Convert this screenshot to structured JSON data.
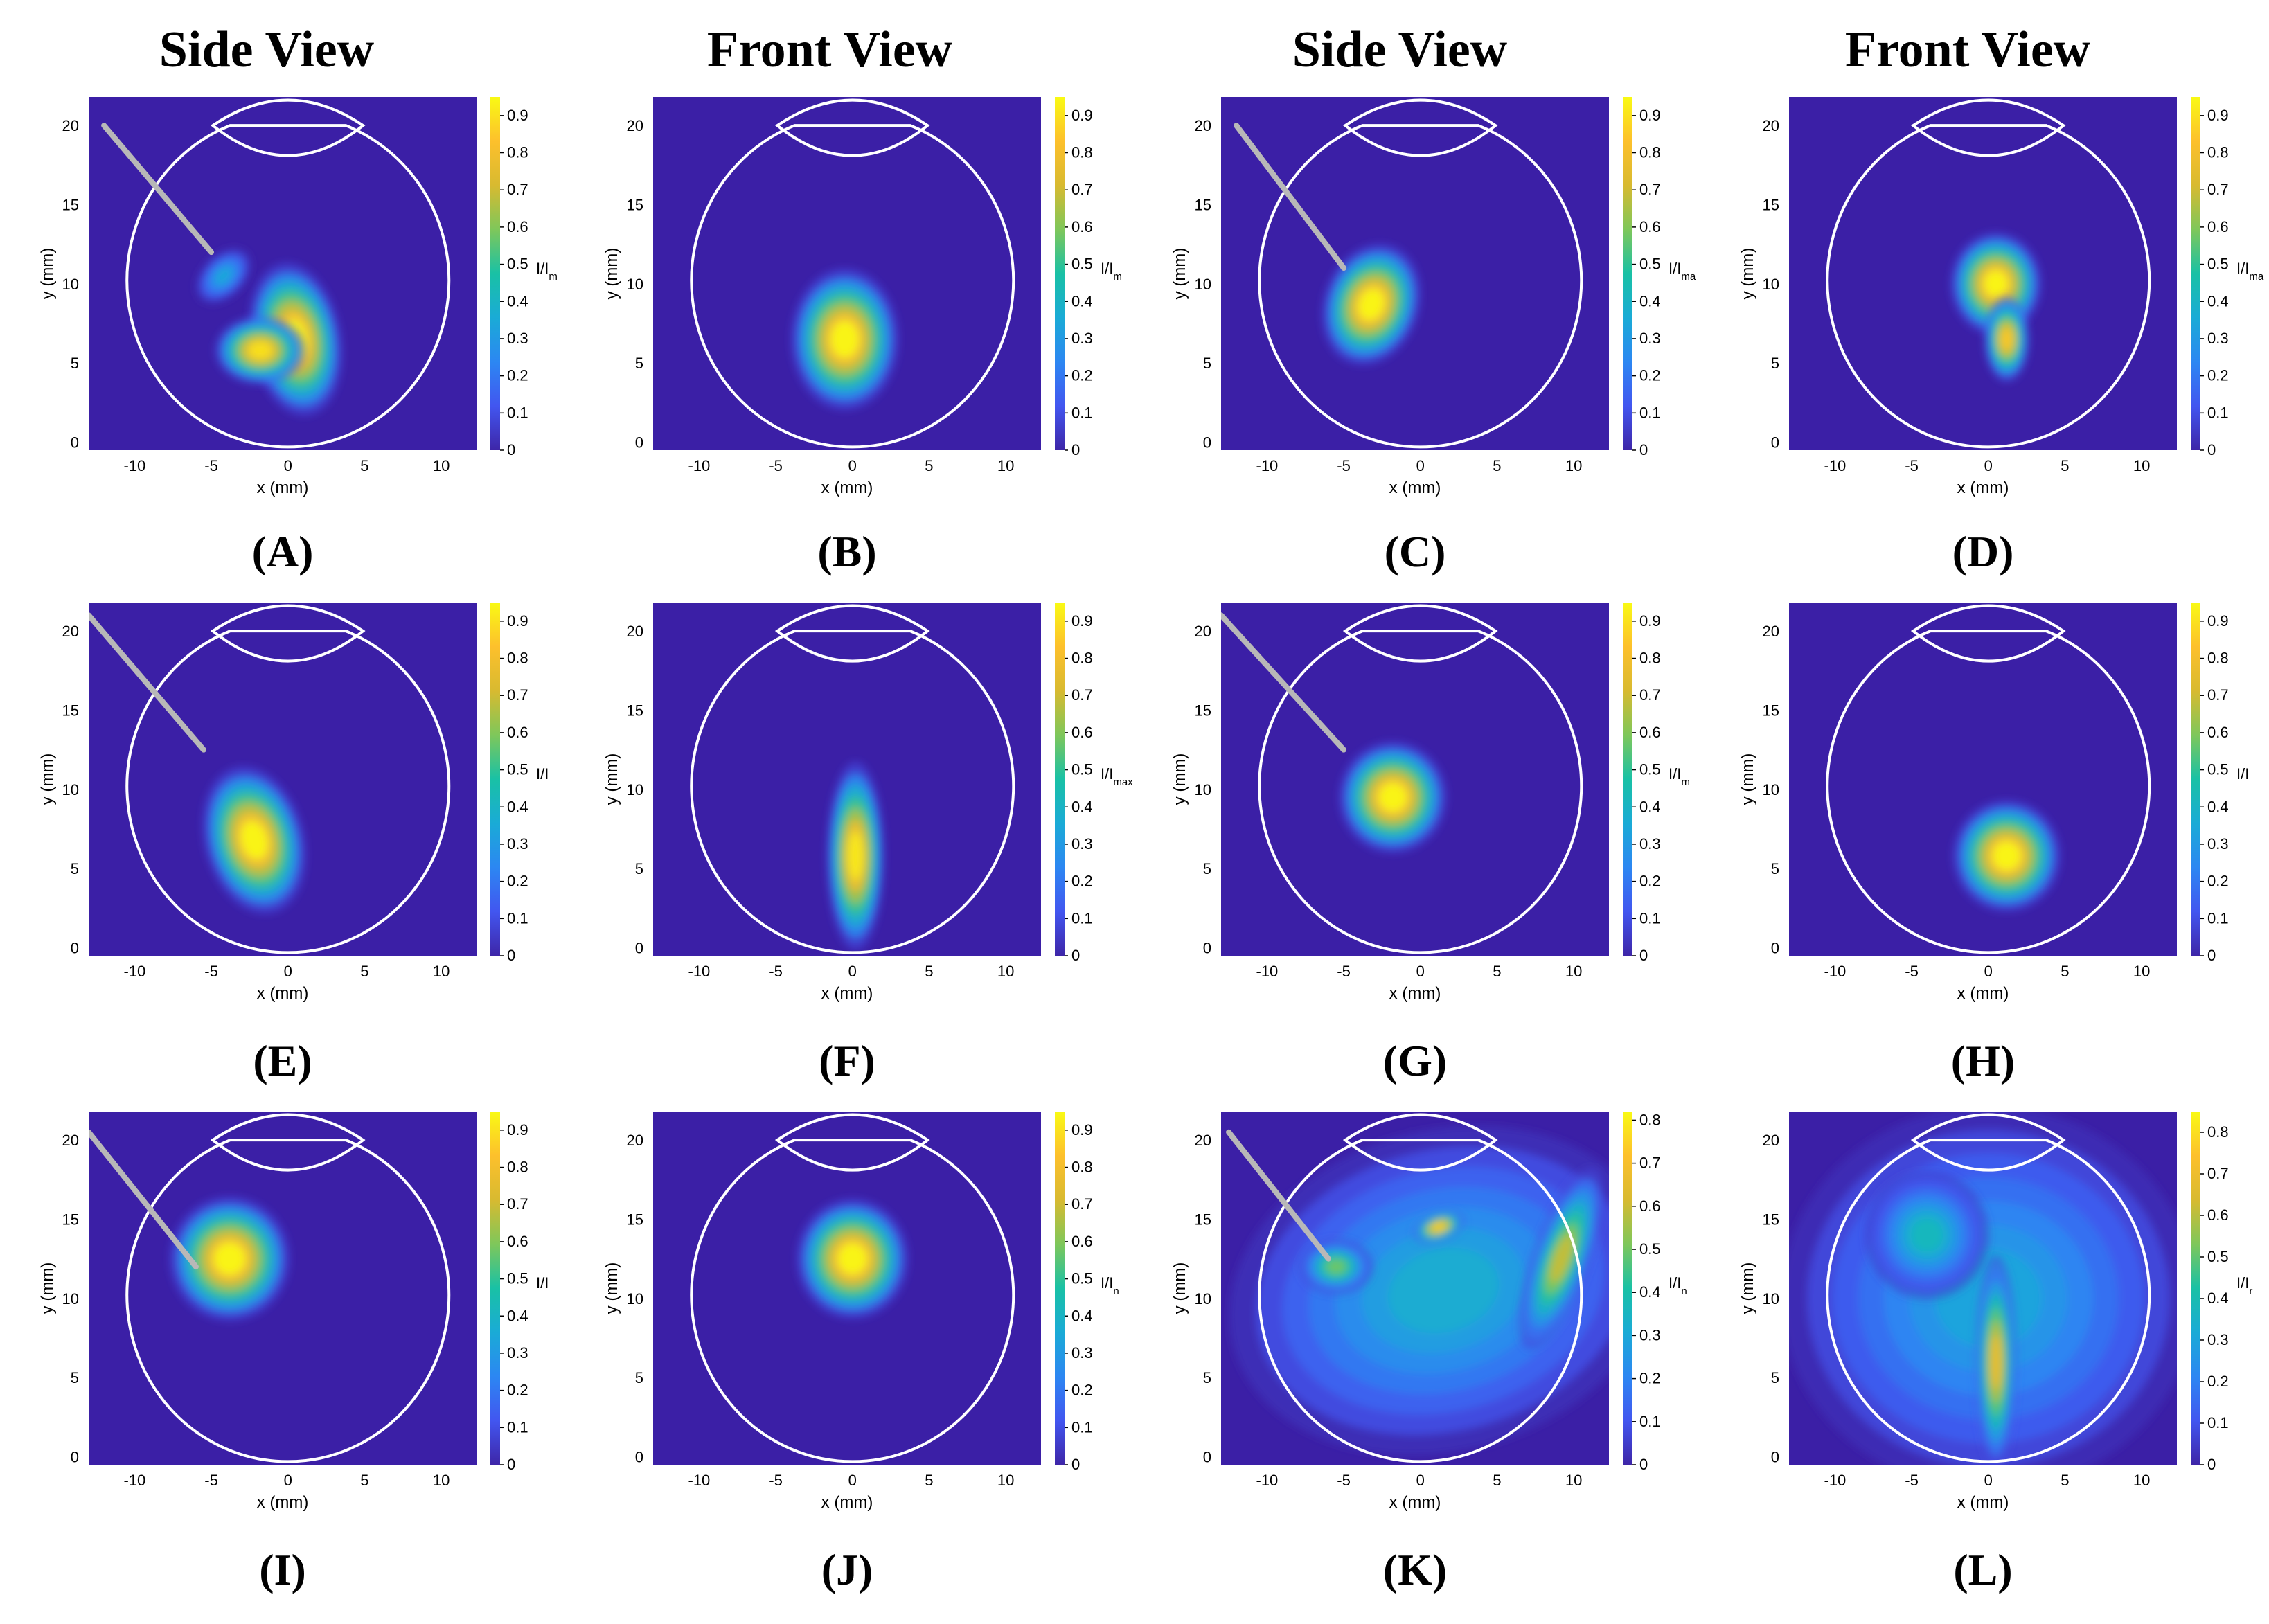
{
  "headers": [
    "Side View",
    "Front View",
    "Side View",
    "Front View"
  ],
  "colors": {
    "background": "#3B1FA6",
    "outline": "#FFFFFF",
    "needle": "#B8B8B8",
    "colormap": [
      "#3E26A8",
      "#4256F0",
      "#2C87F2",
      "#1AABD6",
      "#19C1A5",
      "#7FC75A",
      "#D8BA30",
      "#FDC02C",
      "#F9FA14"
    ]
  },
  "chart_data": [
    {
      "id": "A",
      "type": "heatmap",
      "view": "side",
      "caption": "(A)",
      "xlabel": "x (mm)",
      "ylabel": "y (mm)",
      "colorbar_label": "I/I_m",
      "clim": [
        0,
        0.95
      ],
      "xticks": [
        -10,
        -5,
        0,
        5,
        10
      ],
      "yticks": [
        0,
        5,
        10,
        15,
        20
      ],
      "colorbar_ticks": [
        0,
        0.1,
        0.2,
        0.3,
        0.4,
        0.5,
        0.6,
        0.7,
        0.8,
        0.9
      ],
      "needle": {
        "start": [
          -12,
          20
        ],
        "end": [
          -5,
          12
        ]
      },
      "blobs": [
        {
          "x": 0.5,
          "y": 6.5,
          "rx": 2.2,
          "ry": 3.6,
          "rot": -10,
          "peak": 0.95
        },
        {
          "x": -1.8,
          "y": 5.8,
          "rx": 2.2,
          "ry": 1.6,
          "rot": 0,
          "peak": 0.9
        },
        {
          "x": -4.2,
          "y": 10.5,
          "rx": 1.6,
          "ry": 1.0,
          "rot": -45,
          "peak": 0.35
        }
      ]
    },
    {
      "id": "B",
      "type": "heatmap",
      "view": "front",
      "caption": "(B)",
      "xlabel": "x (mm)",
      "ylabel": "y (mm)",
      "colorbar_label": "I/I_m",
      "clim": [
        0,
        0.95
      ],
      "xticks": [
        -10,
        -5,
        0,
        5,
        10
      ],
      "yticks": [
        0,
        5,
        10,
        15,
        20
      ],
      "colorbar_ticks": [
        0,
        0.1,
        0.2,
        0.3,
        0.4,
        0.5,
        0.6,
        0.7,
        0.8,
        0.9
      ],
      "needle": null,
      "blobs": [
        {
          "x": -0.5,
          "y": 6.5,
          "rx": 2.6,
          "ry": 3.3,
          "rot": 0,
          "peak": 0.95
        }
      ]
    },
    {
      "id": "C",
      "type": "heatmap",
      "view": "side",
      "caption": "(C)",
      "xlabel": "x (mm)",
      "ylabel": "y (mm)",
      "colorbar_label": "I/I_ma",
      "clim": [
        0,
        0.95
      ],
      "xticks": [
        -10,
        -5,
        0,
        5,
        10
      ],
      "yticks": [
        0,
        5,
        10,
        15,
        20
      ],
      "colorbar_ticks": [
        0,
        0.1,
        0.2,
        0.3,
        0.4,
        0.5,
        0.6,
        0.7,
        0.8,
        0.9
      ],
      "needle": {
        "start": [
          -12,
          20
        ],
        "end": [
          -5,
          11
        ]
      },
      "blobs": [
        {
          "x": -3.2,
          "y": 8.7,
          "rx": 2.3,
          "ry": 2.9,
          "rot": 20,
          "peak": 0.95
        }
      ]
    },
    {
      "id": "D",
      "type": "heatmap",
      "view": "front",
      "caption": "(D)",
      "xlabel": "x (mm)",
      "ylabel": "y (mm)",
      "colorbar_label": "I/I_ma",
      "clim": [
        0,
        0.95
      ],
      "xticks": [
        -10,
        -5,
        0,
        5,
        10
      ],
      "yticks": [
        0,
        5,
        10,
        15,
        20
      ],
      "colorbar_ticks": [
        0,
        0.1,
        0.2,
        0.3,
        0.4,
        0.5,
        0.6,
        0.7,
        0.8,
        0.9
      ],
      "needle": null,
      "blobs": [
        {
          "x": 0.5,
          "y": 10.0,
          "rx": 2.2,
          "ry": 2.4,
          "rot": 0,
          "peak": 0.95
        },
        {
          "x": 1.2,
          "y": 6.5,
          "rx": 1.1,
          "ry": 2.0,
          "rot": 0,
          "peak": 0.85
        }
      ]
    },
    {
      "id": "E",
      "type": "heatmap",
      "view": "side",
      "caption": "(E)",
      "xlabel": "x (mm)",
      "ylabel": "y (mm)",
      "colorbar_label": "I/I",
      "clim": [
        0,
        0.95
      ],
      "xticks": [
        -10,
        -5,
        0,
        5,
        10
      ],
      "yticks": [
        0,
        5,
        10,
        15,
        20
      ],
      "colorbar_ticks": [
        0,
        0.1,
        0.2,
        0.3,
        0.4,
        0.5,
        0.6,
        0.7,
        0.8,
        0.9
      ],
      "needle": {
        "start": [
          -13,
          21
        ],
        "end": [
          -5.5,
          12.5
        ]
      },
      "blobs": [
        {
          "x": -2.2,
          "y": 6.8,
          "rx": 2.4,
          "ry": 3.5,
          "rot": -15,
          "peak": 0.95
        }
      ]
    },
    {
      "id": "F",
      "type": "heatmap",
      "view": "front",
      "caption": "(F)",
      "xlabel": "x (mm)",
      "ylabel": "y (mm)",
      "colorbar_label": "I/I_max",
      "clim": [
        0,
        0.95
      ],
      "xticks": [
        -10,
        -5,
        0,
        5,
        10
      ],
      "yticks": [
        0,
        5,
        10,
        15,
        20
      ],
      "colorbar_ticks": [
        0,
        0.1,
        0.2,
        0.3,
        0.4,
        0.5,
        0.6,
        0.7,
        0.8,
        0.9
      ],
      "needle": null,
      "blobs": [
        {
          "x": 0.2,
          "y": 5.8,
          "rx": 1.4,
          "ry": 4.4,
          "rot": 0,
          "peak": 0.92
        }
      ]
    },
    {
      "id": "G",
      "type": "heatmap",
      "view": "side",
      "caption": "(G)",
      "xlabel": "x (mm)",
      "ylabel": "y (mm)",
      "colorbar_label": "I/I_m",
      "clim": [
        0,
        0.95
      ],
      "xticks": [
        -10,
        -5,
        0,
        5,
        10
      ],
      "yticks": [
        0,
        5,
        10,
        15,
        20
      ],
      "colorbar_ticks": [
        0,
        0.1,
        0.2,
        0.3,
        0.4,
        0.5,
        0.6,
        0.7,
        0.8,
        0.9
      ],
      "needle": {
        "start": [
          -13,
          21
        ],
        "end": [
          -5,
          12.5
        ]
      },
      "blobs": [
        {
          "x": -1.8,
          "y": 9.5,
          "rx": 2.6,
          "ry": 2.6,
          "rot": 0,
          "peak": 0.95
        }
      ]
    },
    {
      "id": "H",
      "type": "heatmap",
      "view": "front",
      "caption": "(H)",
      "xlabel": "x (mm)",
      "ylabel": "y (mm)",
      "colorbar_label": "I/I",
      "clim": [
        0,
        0.95
      ],
      "xticks": [
        -10,
        -5,
        0,
        5,
        10
      ],
      "yticks": [
        0,
        5,
        10,
        15,
        20
      ],
      "colorbar_ticks": [
        0,
        0.1,
        0.2,
        0.3,
        0.4,
        0.5,
        0.6,
        0.7,
        0.8,
        0.9
      ],
      "needle": null,
      "blobs": [
        {
          "x": 1.2,
          "y": 5.8,
          "rx": 2.6,
          "ry": 2.6,
          "rot": 0,
          "peak": 0.95
        }
      ]
    },
    {
      "id": "I",
      "type": "heatmap",
      "view": "side",
      "caption": "(I)",
      "xlabel": "x (mm)",
      "ylabel": "y (mm)",
      "colorbar_label": "I/I",
      "clim": [
        0,
        0.95
      ],
      "xticks": [
        -10,
        -5,
        0,
        5,
        10
      ],
      "yticks": [
        0,
        5,
        10,
        15,
        20
      ],
      "colorbar_ticks": [
        0,
        0.1,
        0.2,
        0.3,
        0.4,
        0.5,
        0.6,
        0.7,
        0.8,
        0.9
      ],
      "needle": {
        "start": [
          -13,
          20.5
        ],
        "end": [
          -6,
          12
        ]
      },
      "blobs": [
        {
          "x": -3.8,
          "y": 12.5,
          "rx": 2.9,
          "ry": 2.9,
          "rot": 0,
          "peak": 0.95
        }
      ]
    },
    {
      "id": "J",
      "type": "heatmap",
      "view": "front",
      "caption": "(J)",
      "xlabel": "x (mm)",
      "ylabel": "y (mm)",
      "colorbar_label": "I/I_n",
      "clim": [
        0,
        0.95
      ],
      "xticks": [
        -10,
        -5,
        0,
        5,
        10
      ],
      "yticks": [
        0,
        5,
        10,
        15,
        20
      ],
      "colorbar_ticks": [
        0,
        0.1,
        0.2,
        0.3,
        0.4,
        0.5,
        0.6,
        0.7,
        0.8,
        0.9
      ],
      "needle": null,
      "blobs": [
        {
          "x": 0.0,
          "y": 12.5,
          "rx": 2.7,
          "ry": 2.8,
          "rot": 0,
          "peak": 0.95
        }
      ]
    },
    {
      "id": "K",
      "type": "heatmap",
      "view": "side",
      "caption": "(K)",
      "xlabel": "x (mm)",
      "ylabel": "y (mm)",
      "colorbar_label": "I/I_n",
      "clim": [
        0,
        0.82
      ],
      "xticks": [
        -10,
        -5,
        0,
        5,
        10
      ],
      "yticks": [
        0,
        5,
        10,
        15,
        20
      ],
      "colorbar_ticks": [
        0,
        0.1,
        0.2,
        0.3,
        0.4,
        0.5,
        0.6,
        0.7,
        0.8
      ],
      "needle": {
        "start": [
          -12.5,
          20.5
        ],
        "end": [
          -6,
          12.5
        ]
      },
      "blobs": [
        {
          "x": 1.5,
          "y": 10.5,
          "rx": 10.5,
          "ry": 7.5,
          "rot": -15,
          "peak": 0.32
        },
        {
          "x": 1.2,
          "y": 14.5,
          "rx": 1.3,
          "ry": 0.7,
          "rot": -20,
          "peak": 0.75
        },
        {
          "x": 9.2,
          "y": 12.5,
          "rx": 1.4,
          "ry": 4.5,
          "rot": 20,
          "peak": 0.6
        },
        {
          "x": -5.5,
          "y": 12.0,
          "rx": 1.8,
          "ry": 1.3,
          "rot": 0,
          "peak": 0.5
        }
      ]
    },
    {
      "id": "L",
      "type": "heatmap",
      "view": "front",
      "caption": "(L)",
      "xlabel": "x (mm)",
      "ylabel": "y (mm)",
      "colorbar_label": "I/I_r",
      "clim": [
        0,
        0.85
      ],
      "xticks": [
        -10,
        -5,
        0,
        5,
        10
      ],
      "yticks": [
        0,
        5,
        10,
        15,
        20
      ],
      "colorbar_ticks": [
        0,
        0.1,
        0.2,
        0.3,
        0.4,
        0.5,
        0.6,
        0.7,
        0.8
      ],
      "needle": null,
      "blobs": [
        {
          "x": 0.0,
          "y": 10.0,
          "rx": 10.0,
          "ry": 9.0,
          "rot": 0,
          "peak": 0.3
        },
        {
          "x": 0.5,
          "y": 6.0,
          "rx": 1.0,
          "ry": 5.0,
          "rot": 0,
          "peak": 0.7
        },
        {
          "x": -4.0,
          "y": 14.0,
          "rx": 3.0,
          "ry": 3.0,
          "rot": 0,
          "peak": 0.38
        }
      ]
    }
  ]
}
